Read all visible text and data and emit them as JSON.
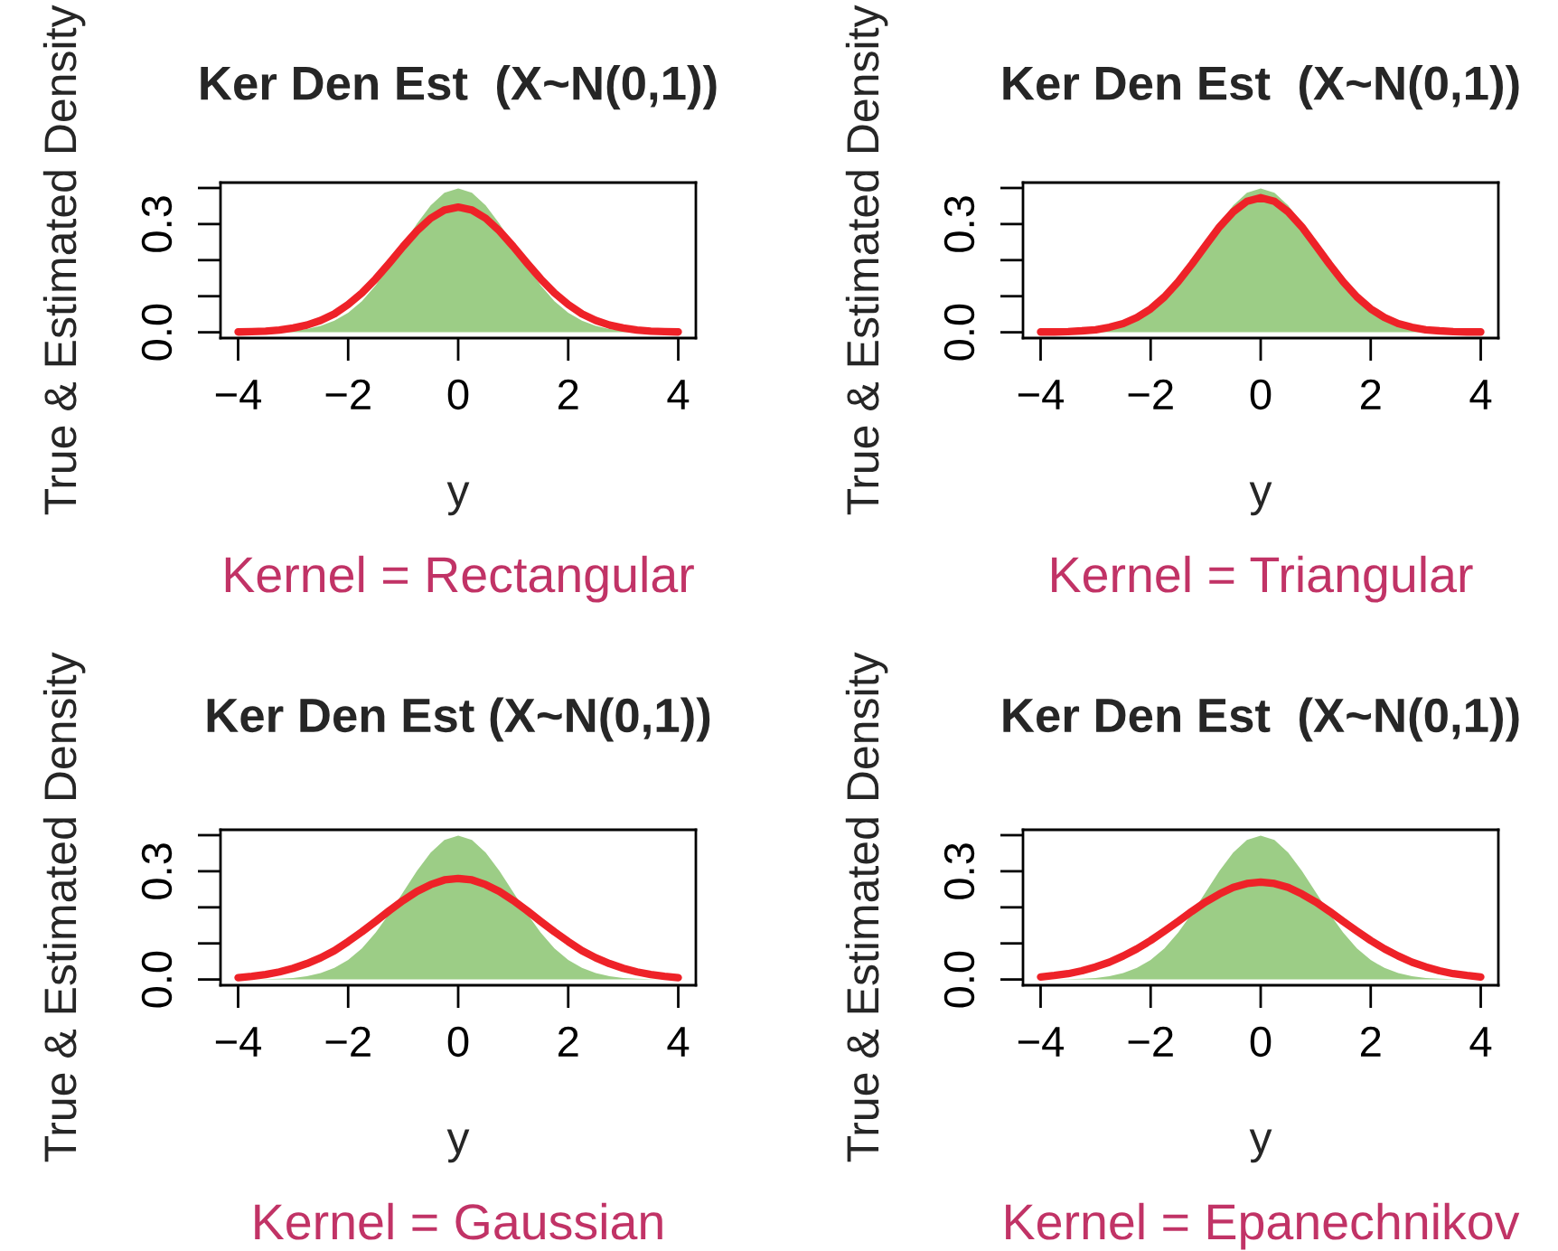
{
  "chart_data": [
    {
      "type": "area",
      "title": "Ker Den Est  (X~N(0,1))",
      "xlabel": "y",
      "ylabel": "True & Estimated Density",
      "annotations": [
        "Kernel = Rectangular"
      ],
      "x": [
        -4,
        -3.75,
        -3.5,
        -3.25,
        -3,
        -2.75,
        -2.5,
        -2.25,
        -2,
        -1.75,
        -1.5,
        -1.25,
        -1,
        -0.75,
        -0.5,
        -0.25,
        0,
        0.25,
        0.5,
        0.75,
        1,
        1.25,
        1.5,
        1.75,
        2,
        2.25,
        2.5,
        2.75,
        3,
        3.25,
        3.5,
        3.75,
        4
      ],
      "xlim": [
        -4.32,
        4.32
      ],
      "xticks": [
        -4,
        -2,
        0,
        2,
        4
      ],
      "ylim": [
        -0.016,
        0.415
      ],
      "yticks": [
        {
          "value": 0,
          "label": "0.0"
        },
        {
          "value": 0.1,
          "label": null
        },
        {
          "value": 0.2,
          "label": null
        },
        {
          "value": 0.3,
          "label": "0.3"
        },
        {
          "value": 0.4,
          "label": null
        }
      ],
      "grid": false,
      "legend": false,
      "series": [
        {
          "type": "area",
          "color": "#9ccd86",
          "values": [
            0,
            0,
            0.001,
            0.002,
            0.004,
            0.009,
            0.018,
            0.032,
            0.054,
            0.086,
            0.13,
            0.183,
            0.242,
            0.301,
            0.352,
            0.387,
            0.399,
            0.387,
            0.352,
            0.301,
            0.242,
            0.183,
            0.13,
            0.086,
            0.054,
            0.032,
            0.018,
            0.009,
            0.004,
            0.002,
            0.001,
            0,
            0
          ]
        },
        {
          "type": "line",
          "color": "#ee2228",
          "values": [
            0.001,
            0.002,
            0.003,
            0.006,
            0.012,
            0.02,
            0.033,
            0.051,
            0.077,
            0.109,
            0.148,
            0.192,
            0.238,
            0.281,
            0.316,
            0.339,
            0.347,
            0.339,
            0.316,
            0.281,
            0.238,
            0.192,
            0.148,
            0.109,
            0.077,
            0.051,
            0.033,
            0.02,
            0.012,
            0.006,
            0.003,
            0.002,
            0.001
          ]
        }
      ]
    },
    {
      "type": "area",
      "title": "Ker Den Est  (X~N(0,1))",
      "xlabel": "y",
      "ylabel": "True & Estimated Density",
      "annotations": [
        "Kernel = Triangular"
      ],
      "x": [
        -4,
        -3.75,
        -3.5,
        -3.25,
        -3,
        -2.75,
        -2.5,
        -2.25,
        -2,
        -1.75,
        -1.5,
        -1.25,
        -1,
        -0.75,
        -0.5,
        -0.25,
        0,
        0.25,
        0.5,
        0.75,
        1,
        1.25,
        1.5,
        1.75,
        2,
        2.25,
        2.5,
        2.75,
        3,
        3.25,
        3.5,
        3.75,
        4
      ],
      "xlim": [
        -4.32,
        4.32
      ],
      "xticks": [
        -4,
        -2,
        0,
        2,
        4
      ],
      "ylim": [
        -0.016,
        0.415
      ],
      "yticks": [
        {
          "value": 0,
          "label": "0.0"
        },
        {
          "value": 0.1,
          "label": null
        },
        {
          "value": 0.2,
          "label": null
        },
        {
          "value": 0.3,
          "label": "0.3"
        },
        {
          "value": 0.4,
          "label": null
        }
      ],
      "grid": false,
      "legend": false,
      "series": [
        {
          "type": "area",
          "color": "#9ccd86",
          "values": [
            0,
            0,
            0.001,
            0.002,
            0.004,
            0.009,
            0.018,
            0.032,
            0.054,
            0.086,
            0.13,
            0.183,
            0.242,
            0.301,
            0.352,
            0.387,
            0.399,
            0.387,
            0.352,
            0.301,
            0.242,
            0.183,
            0.13,
            0.086,
            0.054,
            0.032,
            0.018,
            0.009,
            0.004,
            0.002,
            0.001,
            0,
            0
          ]
        },
        {
          "type": "line",
          "color": "#ee2228",
          "values": [
            0.001,
            0.001,
            0.002,
            0.004,
            0.007,
            0.014,
            0.024,
            0.041,
            0.065,
            0.098,
            0.14,
            0.189,
            0.241,
            0.292,
            0.334,
            0.363,
            0.373,
            0.363,
            0.334,
            0.292,
            0.241,
            0.189,
            0.14,
            0.098,
            0.065,
            0.041,
            0.024,
            0.014,
            0.007,
            0.004,
            0.002,
            0.001,
            0.001
          ]
        }
      ]
    },
    {
      "type": "area",
      "title": "Ker Den Est (X~N(0,1))",
      "xlabel": "y",
      "ylabel": "True & Estimated Density",
      "annotations": [
        "Kernel = Gaussian"
      ],
      "x": [
        -4,
        -3.75,
        -3.5,
        -3.25,
        -3,
        -2.75,
        -2.5,
        -2.25,
        -2,
        -1.75,
        -1.5,
        -1.25,
        -1,
        -0.75,
        -0.5,
        -0.25,
        0,
        0.25,
        0.5,
        0.75,
        1,
        1.25,
        1.5,
        1.75,
        2,
        2.25,
        2.5,
        2.75,
        3,
        3.25,
        3.5,
        3.75,
        4
      ],
      "xlim": [
        -4.32,
        4.32
      ],
      "xticks": [
        -4,
        -2,
        0,
        2,
        4
      ],
      "ylim": [
        -0.016,
        0.415
      ],
      "yticks": [
        {
          "value": 0,
          "label": "0.0"
        },
        {
          "value": 0.1,
          "label": null
        },
        {
          "value": 0.2,
          "label": null
        },
        {
          "value": 0.3,
          "label": "0.3"
        },
        {
          "value": 0.4,
          "label": null
        }
      ],
      "grid": false,
      "legend": false,
      "series": [
        {
          "type": "area",
          "color": "#9ccd86",
          "values": [
            0,
            0,
            0.001,
            0.002,
            0.004,
            0.009,
            0.018,
            0.032,
            0.054,
            0.086,
            0.13,
            0.183,
            0.242,
            0.301,
            0.352,
            0.387,
            0.399,
            0.387,
            0.352,
            0.301,
            0.242,
            0.183,
            0.13,
            0.086,
            0.054,
            0.032,
            0.018,
            0.009,
            0.004,
            0.002,
            0.001,
            0,
            0
          ]
        },
        {
          "type": "line",
          "color": "#ee2228",
          "values": [
            0.005,
            0.009,
            0.014,
            0.021,
            0.031,
            0.044,
            0.06,
            0.08,
            0.105,
            0.132,
            0.161,
            0.191,
            0.219,
            0.244,
            0.263,
            0.276,
            0.28,
            0.276,
            0.263,
            0.244,
            0.219,
            0.191,
            0.161,
            0.132,
            0.105,
            0.08,
            0.06,
            0.044,
            0.031,
            0.021,
            0.014,
            0.009,
            0.005
          ]
        }
      ]
    },
    {
      "type": "area",
      "title": "Ker Den Est  (X~N(0,1))",
      "xlabel": "y",
      "ylabel": "True & Estimated Density",
      "annotations": [
        "Kernel = Epanechnikov"
      ],
      "x": [
        -4,
        -3.75,
        -3.5,
        -3.25,
        -3,
        -2.75,
        -2.5,
        -2.25,
        -2,
        -1.75,
        -1.5,
        -1.25,
        -1,
        -0.75,
        -0.5,
        -0.25,
        0,
        0.25,
        0.5,
        0.75,
        1,
        1.25,
        1.5,
        1.75,
        2,
        2.25,
        2.5,
        2.75,
        3,
        3.25,
        3.5,
        3.75,
        4
      ],
      "xlim": [
        -4.32,
        4.32
      ],
      "xticks": [
        -4,
        -2,
        0,
        2,
        4
      ],
      "ylim": [
        -0.016,
        0.415
      ],
      "yticks": [
        {
          "value": 0,
          "label": "0.0"
        },
        {
          "value": 0.1,
          "label": null
        },
        {
          "value": 0.2,
          "label": null
        },
        {
          "value": 0.3,
          "label": "0.3"
        },
        {
          "value": 0.4,
          "label": null
        }
      ],
      "grid": false,
      "legend": false,
      "series": [
        {
          "type": "area",
          "color": "#9ccd86",
          "values": [
            0,
            0,
            0.001,
            0.002,
            0.004,
            0.009,
            0.018,
            0.032,
            0.054,
            0.086,
            0.13,
            0.183,
            0.242,
            0.301,
            0.352,
            0.387,
            0.399,
            0.387,
            0.352,
            0.301,
            0.242,
            0.183,
            0.13,
            0.086,
            0.054,
            0.032,
            0.018,
            0.009,
            0.004,
            0.002,
            0.001,
            0,
            0
          ]
        },
        {
          "type": "line",
          "color": "#ee2228",
          "values": [
            0.007,
            0.011,
            0.016,
            0.024,
            0.035,
            0.048,
            0.065,
            0.085,
            0.108,
            0.134,
            0.161,
            0.189,
            0.215,
            0.237,
            0.255,
            0.266,
            0.27,
            0.266,
            0.255,
            0.237,
            0.215,
            0.189,
            0.161,
            0.134,
            0.108,
            0.085,
            0.065,
            0.048,
            0.035,
            0.024,
            0.016,
            0.011,
            0.007
          ]
        }
      ]
    }
  ]
}
